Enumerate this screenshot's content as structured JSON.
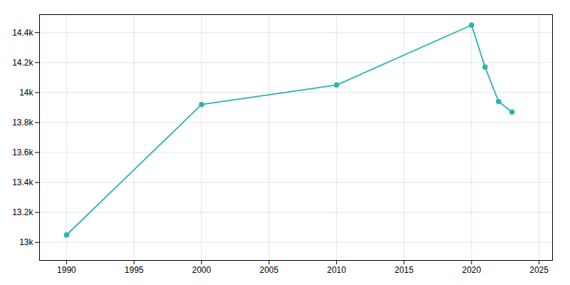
{
  "chart_data": {
    "type": "line",
    "x": [
      1990,
      2000,
      2010,
      2020,
      2021,
      2022,
      2023
    ],
    "values": [
      13050,
      13920,
      14050,
      14450,
      14170,
      13940,
      13870
    ],
    "color": "#2ab5b0",
    "marker": "circle",
    "xlim": [
      1988,
      2026
    ],
    "xticks": [
      1990,
      1995,
      2000,
      2005,
      2010,
      2015,
      2020,
      2025
    ],
    "ylim": [
      12880,
      14520
    ],
    "yticks": [
      {
        "value": 13000,
        "label": "13k"
      },
      {
        "value": 13200,
        "label": "13.2k"
      },
      {
        "value": 13400,
        "label": "13.4k"
      },
      {
        "value": 13600,
        "label": "13.6k"
      },
      {
        "value": 13800,
        "label": "13.8k"
      },
      {
        "value": 14000,
        "label": "14k"
      },
      {
        "value": 14200,
        "label": "14.2k"
      },
      {
        "value": 14400,
        "label": "14.4k"
      }
    ],
    "grid": true
  }
}
